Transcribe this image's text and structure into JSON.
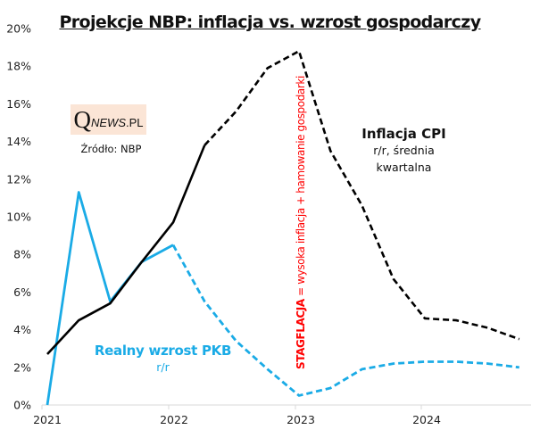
{
  "chart_data": {
    "type": "line",
    "title": "Projekcje NBP: inflacja vs. wzrost gospodarczy",
    "xlabel": "",
    "ylabel": "",
    "ylim": [
      0,
      20
    ],
    "yticks": [
      "0%",
      "2%",
      "4%",
      "6%",
      "8%",
      "10%",
      "12%",
      "14%",
      "16%",
      "18%",
      "20%"
    ],
    "ytick_values": [
      0,
      2,
      4,
      6,
      8,
      10,
      12,
      14,
      16,
      18,
      20
    ],
    "xticks": [
      "2021",
      "2022",
      "2023",
      "2024"
    ],
    "x": [
      "2021Q1",
      "2021Q2",
      "2021Q3",
      "2021Q4",
      "2022Q1",
      "2022Q2",
      "2022Q3",
      "2022Q4",
      "2023Q1",
      "2023Q2",
      "2023Q3",
      "2023Q4",
      "2024Q1",
      "2024Q2",
      "2024Q3",
      "2024Q4"
    ],
    "grid": false,
    "series": [
      {
        "name": "Inflacja CPI",
        "color": "#000000",
        "values": [
          2.7,
          4.5,
          5.4,
          7.6,
          9.7,
          13.8,
          15.6,
          17.9,
          18.8,
          13.5,
          10.6,
          6.7,
          4.6,
          4.5,
          4.1,
          3.5
        ],
        "actual_until_index": 5
      },
      {
        "name": "Realny wzrost PKB",
        "color": "#1aabe6",
        "values": [
          0.0,
          11.3,
          5.5,
          7.6,
          8.5,
          5.5,
          3.4,
          1.9,
          0.5,
          0.9,
          1.9,
          2.2,
          2.3,
          2.3,
          2.2,
          2.0
        ],
        "actual_until_index": 4
      }
    ],
    "annotations": {
      "cpi_title": "Inflacja CPI",
      "cpi_sub1": "r/r, średnia",
      "cpi_sub2": "kwartalna",
      "gdp_title": "Realny wzrost PKB",
      "gdp_sub": "r/r",
      "stag_bold": "STAGFLACJA",
      "stag_rest": " = wysoka inflacja + hamowanie gospodarki",
      "source": "Źródło: NBP"
    }
  },
  "logo": {
    "q": "Q",
    "news": "NEWS",
    "pl": ".PL",
    "bg_color": "#fbe5d6"
  }
}
